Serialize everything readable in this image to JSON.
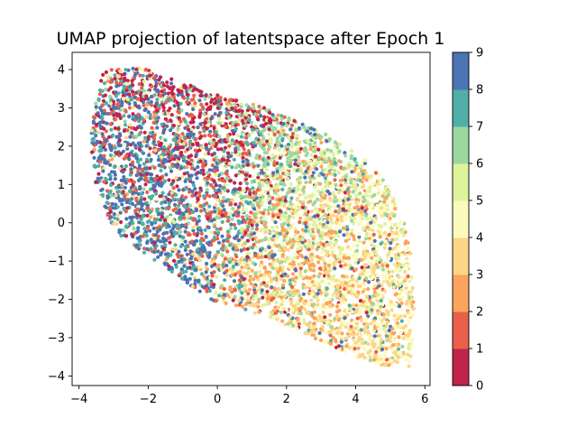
{
  "chart_data": {
    "type": "scatter",
    "title": "UMAP projection of latentspace after Epoch 1",
    "xlabel": "",
    "ylabel": "",
    "xlim": [
      -4.2,
      6.15
    ],
    "ylim": [
      -4.25,
      4.45
    ],
    "xticks": [
      -4,
      -2,
      0,
      2,
      4,
      6
    ],
    "yticks": [
      -4,
      -3,
      -2,
      -1,
      0,
      1,
      2,
      3,
      4
    ],
    "xtick_labels": [
      "−4",
      "−2",
      "0",
      "2",
      "4",
      "6"
    ],
    "ytick_labels": [
      "−4",
      "−3",
      "−2",
      "−1",
      "0",
      "1",
      "2",
      "3",
      "4"
    ],
    "grid": false,
    "point_region": {
      "polygon": [
        [
          -3.6,
          2.9
        ],
        [
          -3.3,
          4.0
        ],
        [
          -2.2,
          4.05
        ],
        [
          -0.5,
          3.5
        ],
        [
          1.4,
          3.0
        ],
        [
          3.0,
          2.4
        ],
        [
          4.4,
          1.6
        ],
        [
          4.8,
          1.2
        ],
        [
          5.4,
          0.1
        ],
        [
          5.6,
          -0.8
        ],
        [
          5.7,
          -2.5
        ],
        [
          5.6,
          -3.8
        ],
        [
          4.6,
          -3.7
        ],
        [
          3.0,
          -3.1
        ],
        [
          1.6,
          -2.5
        ],
        [
          -0.2,
          -2.0
        ],
        [
          -1.8,
          -1.0
        ],
        [
          -3.0,
          -0.2
        ],
        [
          -3.5,
          0.9
        ],
        [
          -3.7,
          2.3
        ]
      ]
    },
    "cluster_centers": {
      "0": [
        -0.8,
        2.2
      ],
      "1": [
        -1.0,
        1.2
      ],
      "2": [
        2.8,
        -0.5
      ],
      "3": [
        3.5,
        -1.2
      ],
      "4": [
        3.8,
        -0.8
      ],
      "5": [
        3.0,
        0.2
      ],
      "6": [
        1.8,
        1.2
      ],
      "7": [
        -2.0,
        0.8
      ],
      "8": [
        -1.8,
        0.2
      ],
      "9": [
        -2.6,
        0.8
      ]
    },
    "colorbar": {
      "ticks": [
        0,
        1,
        2,
        3,
        4,
        5,
        6,
        7,
        8,
        9
      ],
      "tick_labels": [
        "0",
        "1",
        "2",
        "3",
        "4",
        "5",
        "6",
        "7",
        "8",
        "9"
      ],
      "range": [
        0,
        9
      ],
      "colors": [
        "#c0244b",
        "#e8604a",
        "#fba45d",
        "#fdd685",
        "#fdfbbc",
        "#dff39b",
        "#9cd89f",
        "#50afa8",
        "#4a74b4"
      ]
    }
  }
}
